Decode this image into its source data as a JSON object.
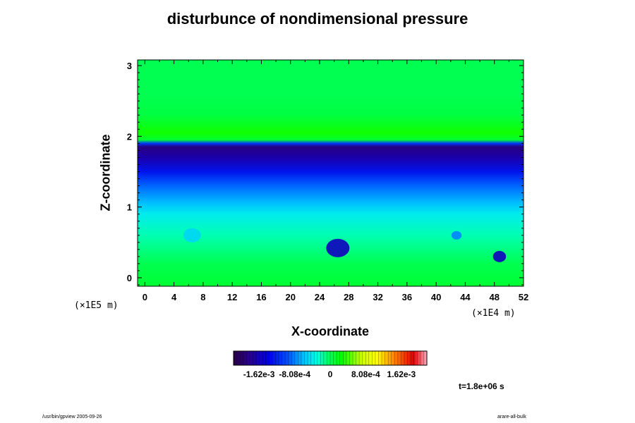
{
  "chart_data": {
    "type": "heatmap",
    "title": "disturbunce of nondimensional pressure",
    "xlabel": "X-coordinate",
    "ylabel": "Z-coordinate",
    "x_scale_label": "(×1E4 m)",
    "y_scale_label": "(×1E5 m)",
    "xlim": [
      -1,
      52
    ],
    "ylim": [
      -0.12,
      3.08
    ],
    "x_ticks": [
      0,
      4,
      8,
      12,
      16,
      20,
      24,
      28,
      32,
      36,
      40,
      44,
      48,
      52
    ],
    "y_ticks": [
      0,
      1,
      2,
      3
    ],
    "colorbar": {
      "range": [
        -0.0022,
        0.0022
      ],
      "tick_values": [
        -0.00162,
        -0.000808,
        0,
        0.000808,
        0.00162
      ],
      "tick_labels": [
        "-1.62e-3",
        "-8.08e-4",
        "0",
        "8.08e-4",
        "1.62e-3"
      ]
    },
    "z_profile": [
      {
        "z": -0.12,
        "v": 0.0001
      },
      {
        "z": 0.2,
        "v": 0.0
      },
      {
        "z": 0.6,
        "v": -0.0002
      },
      {
        "z": 0.9,
        "v": -0.0004
      },
      {
        "z": 1.05,
        "v": -0.0006
      },
      {
        "z": 1.3,
        "v": -0.0009
      },
      {
        "z": 1.5,
        "v": -0.0013
      },
      {
        "z": 1.7,
        "v": -0.0017
      },
      {
        "z": 1.85,
        "v": -0.0019
      },
      {
        "z": 1.9,
        "v": -0.0011
      },
      {
        "z": 1.95,
        "v": 0.0001
      },
      {
        "z": 2.05,
        "v": 0.0003
      },
      {
        "z": 2.3,
        "v": 5e-05
      },
      {
        "z": 2.6,
        "v": 0.0
      },
      {
        "z": 3.08,
        "v": 0.0
      }
    ],
    "features": [
      {
        "x": 26.5,
        "z": 0.42,
        "v": -0.0016,
        "rx": 1.6,
        "rz": 0.13
      },
      {
        "x": 48.7,
        "z": 0.3,
        "v": -0.0016,
        "rx": 0.9,
        "rz": 0.08
      },
      {
        "x": 42.8,
        "z": 0.6,
        "v": -0.0008,
        "rx": 0.7,
        "rz": 0.06
      },
      {
        "x": 6.5,
        "z": 0.6,
        "v": -0.0005,
        "rx": 1.2,
        "rz": 0.1
      }
    ]
  },
  "annotations": {
    "timestamp": "t=1.8e+06 s"
  },
  "footer": {
    "left": "/usr/bin/gpview 2005-09-26",
    "right": "arare-all-bulk"
  }
}
